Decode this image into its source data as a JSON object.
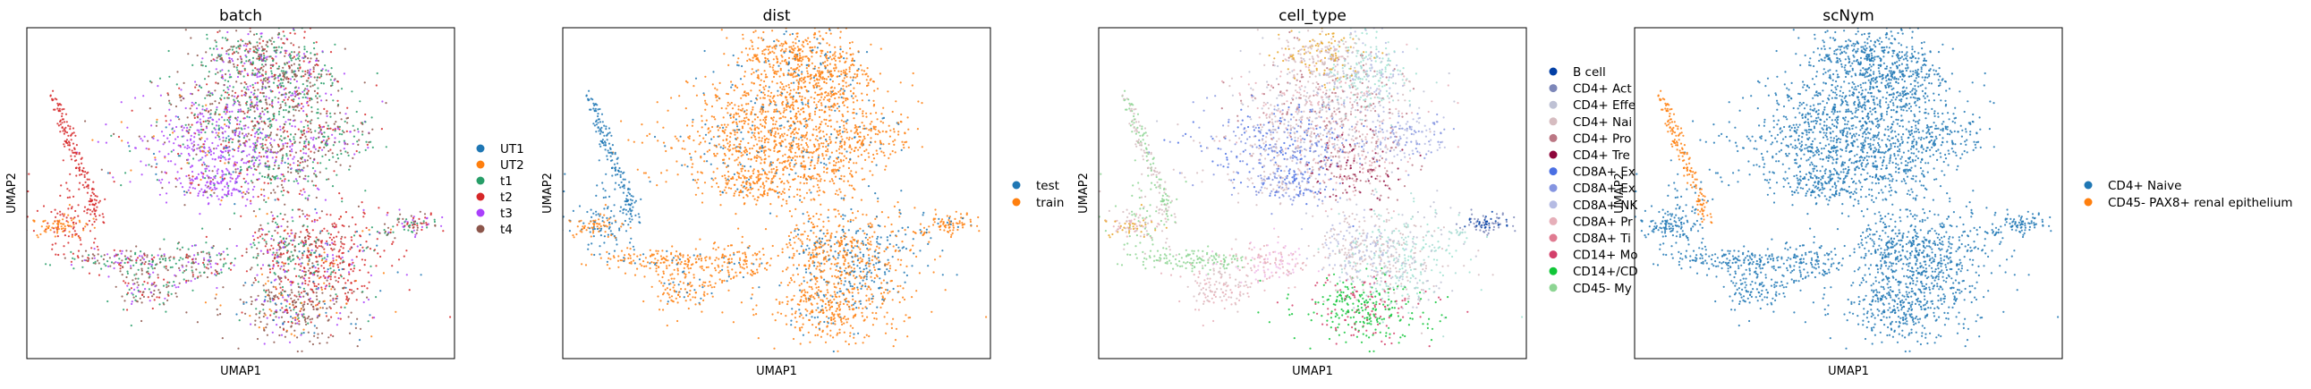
{
  "chart_data": [
    {
      "type": "scatter",
      "title": "batch",
      "xlabel": "UMAP1",
      "ylabel": "UMAP2",
      "grid": false,
      "legend_placement": "right",
      "series": [
        {
          "name": "UT1",
          "color": "#1f77b4"
        },
        {
          "name": "UT2",
          "color": "#ff7f0e"
        },
        {
          "name": "t1",
          "color": "#279e68"
        },
        {
          "name": "t2",
          "color": "#d62728"
        },
        {
          "name": "t3",
          "color": "#aa40fc"
        },
        {
          "name": "t4",
          "color": "#8c564b"
        }
      ]
    },
    {
      "type": "scatter",
      "title": "dist",
      "xlabel": "UMAP1",
      "ylabel": "UMAP2",
      "grid": false,
      "legend_placement": "right",
      "series": [
        {
          "name": "test",
          "color": "#1f77b4"
        },
        {
          "name": "train",
          "color": "#ff7f0e"
        }
      ]
    },
    {
      "type": "scatter",
      "title": "cell_type",
      "xlabel": "UMAP1",
      "ylabel": "UMAP2",
      "grid": false,
      "legend_placement": "right",
      "series": [
        {
          "name": "B cell",
          "color": "#023fa5"
        },
        {
          "name": "CD4+ Act",
          "color": "#7d87b9"
        },
        {
          "name": "CD4+ Effe",
          "color": "#bec1d4"
        },
        {
          "name": "CD4+ Nai",
          "color": "#d6bcc0"
        },
        {
          "name": "CD4+ Pro",
          "color": "#bb7784"
        },
        {
          "name": "CD4+ Tre",
          "color": "#8e063b"
        },
        {
          "name": "CD8A+ Ex",
          "color": "#4a6fe3"
        },
        {
          "name": "CD8A+ Ex",
          "color": "#8595e1"
        },
        {
          "name": "CD8A+ NK",
          "color": "#b5bbe3"
        },
        {
          "name": "CD8A+ Pr",
          "color": "#e6afb9"
        },
        {
          "name": "CD8A+ Ti",
          "color": "#e07b91"
        },
        {
          "name": "CD14+ Mo",
          "color": "#d33f6a"
        },
        {
          "name": "CD14+/CD",
          "color": "#11c638"
        },
        {
          "name": "CD45- My",
          "color": "#8dd593"
        }
      ]
    },
    {
      "type": "scatter",
      "title": "scNym",
      "xlabel": "UMAP1",
      "ylabel": "UMAP2",
      "grid": false,
      "legend_placement": "right",
      "series": [
        {
          "name": "CD4+ Naive",
          "color": "#1f77b4"
        },
        {
          "name": "CD45- PAX8+ renal epithelium",
          "color": "#ff7f0e"
        }
      ]
    }
  ],
  "colors": {
    "teal_extra": "#a9dcd3",
    "gold_extra": "#e8a628",
    "mint_extra": "#9ce2d0",
    "pink_extra": "#f0b9e8"
  }
}
